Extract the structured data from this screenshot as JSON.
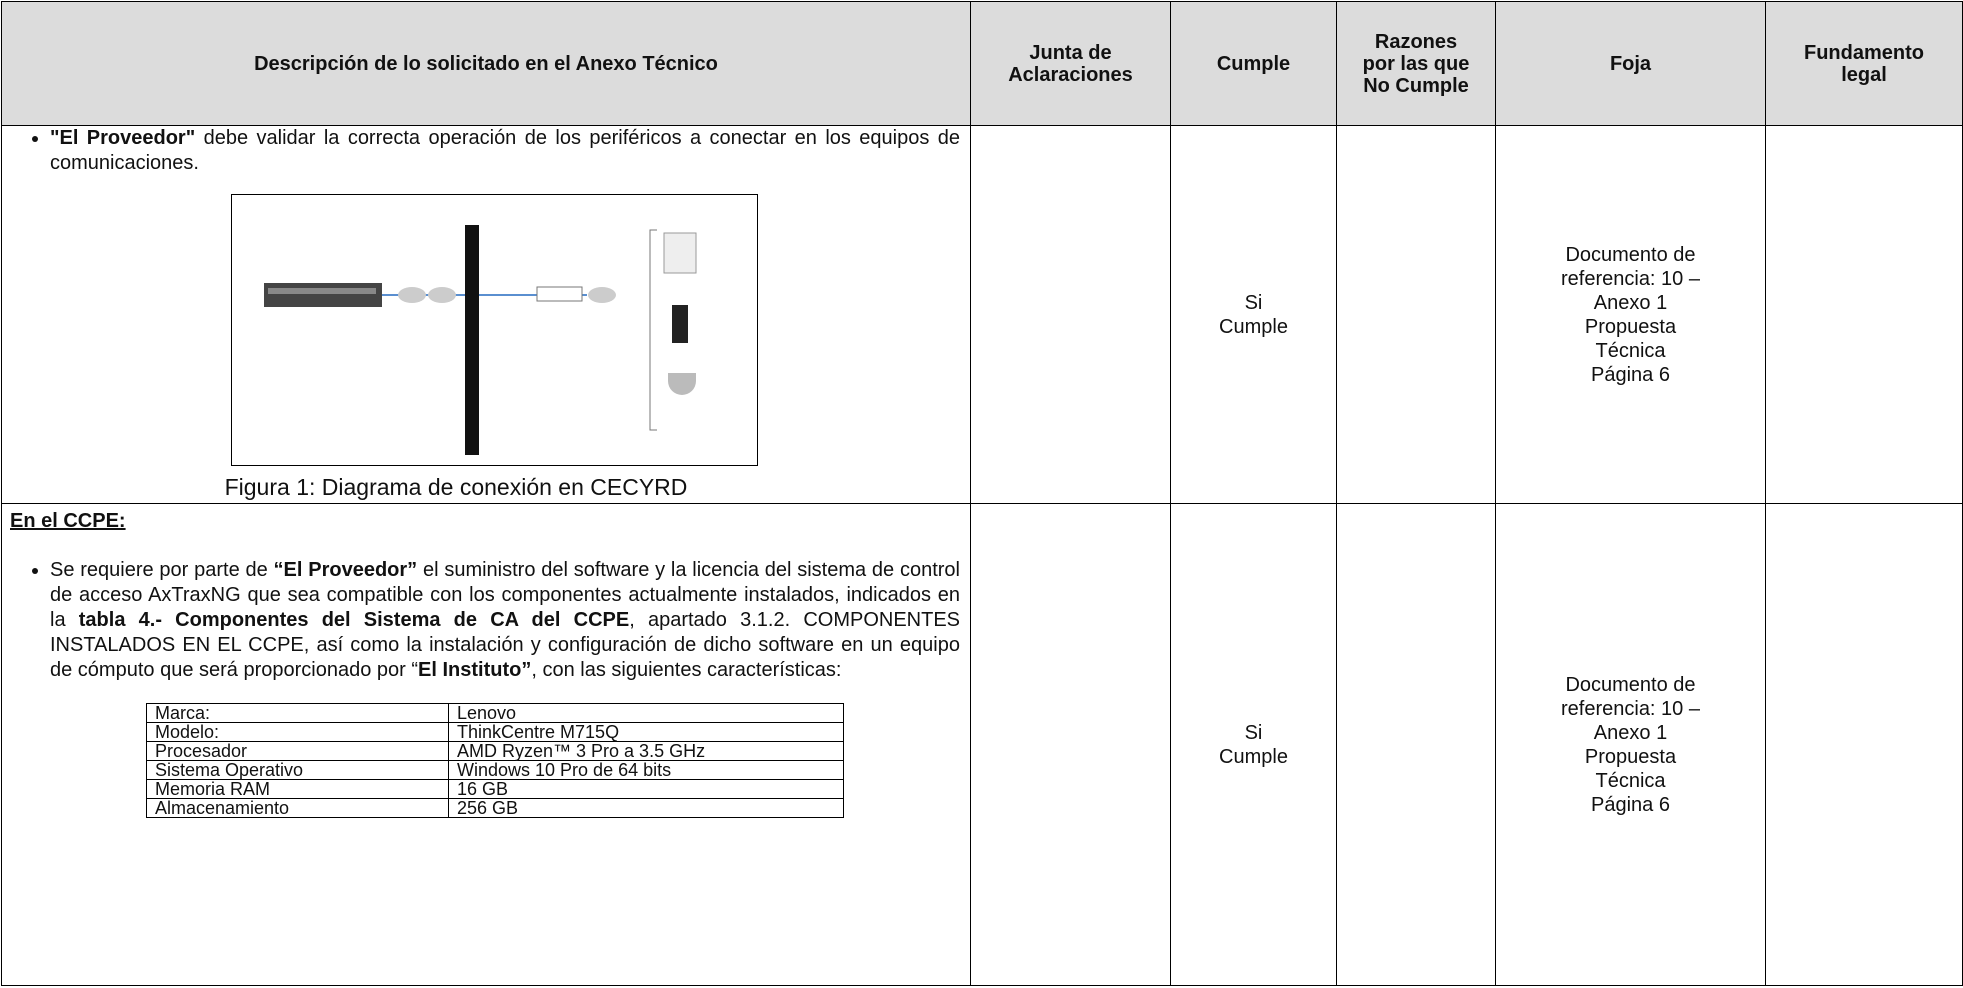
{
  "table": {
    "header": [
      [
        "Descripción de lo solicitado en el Anexo Técnico"
      ],
      [
        "Junta de",
        "Aclaraciones"
      ],
      [
        "Cumple"
      ],
      [
        "Razones",
        "por las que",
        "No Cumple"
      ],
      [
        "Foja"
      ],
      [
        "Fundamento",
        "legal"
      ]
    ],
    "rows": [
      {
        "description": {
          "segments": [
            {
              "text": "\"El Proveedor\"",
              "bold": true
            },
            {
              "text": " debe validar la correcta operación de los periféricos a conectar en los equipos de comunicaciones.",
              "bold": false
            }
          ],
          "figure_caption": "Figura 1: Diagrama de conexión en CECYRD"
        },
        "cumple": [
          "Si",
          "Cumple"
        ],
        "foja": [
          "Documento de",
          "referencia: 10 –",
          "Anexo 1",
          "Propuesta",
          "Técnica",
          "Página 6"
        ]
      },
      {
        "description": {
          "heading": "En el CCPE:",
          "segments": [
            {
              "text": "Se requiere por parte de ",
              "bold": false
            },
            {
              "text": "“El Proveedor”",
              "bold": true
            },
            {
              "text": " el suministro del software y la licencia del sistema de control de acceso AxTraxNG que sea compatible con los componentes actualmente instalados, indicados en la ",
              "bold": false
            },
            {
              "text": "tabla 4.- Componentes del Sistema de CA del CCPE",
              "bold": true
            },
            {
              "text": ", apartado 3.1.2. COMPONENTES INSTALADOS EN EL CCPE, así como la instalación y configuración de dicho software en un equipo de cómputo que será proporcionado por “",
              "bold": false
            },
            {
              "text": "El Instituto”",
              "bold": true
            },
            {
              "text": ", con las siguientes características:",
              "bold": false
            }
          ],
          "specs": [
            [
              "Marca:",
              "Lenovo"
            ],
            [
              "Modelo:",
              "ThinkCentre M715Q"
            ],
            [
              "Procesador",
              "AMD Ryzen™ 3 Pro a 3.5 GHz"
            ],
            [
              "Sistema Operativo",
              "Windows 10 Pro de 64 bits"
            ],
            [
              "Memoria RAM",
              "16 GB"
            ],
            [
              "Almacenamiento",
              "256 GB"
            ]
          ]
        },
        "cumple": [
          "Si",
          "Cumple"
        ],
        "foja": [
          "Documento de",
          "referencia: 10 –",
          "Anexo 1",
          "Propuesta",
          "Técnica",
          "Página 6"
        ]
      }
    ]
  }
}
